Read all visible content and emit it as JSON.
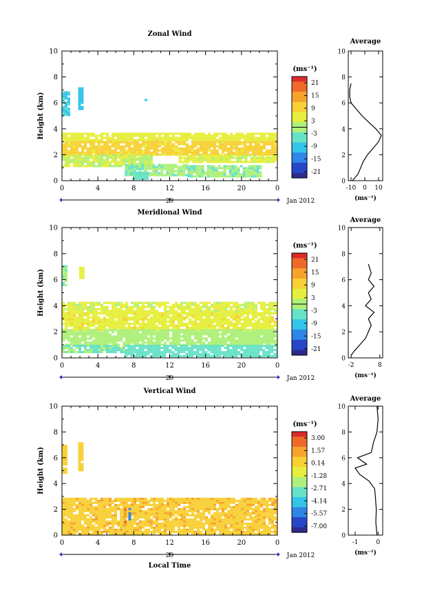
{
  "chart_data": [
    {
      "type": "heatmap",
      "title": "Zonal Wind",
      "ylabel": "Height (km)",
      "xticks": [
        "0",
        "4",
        "8",
        "12",
        "16",
        "20",
        "0"
      ],
      "yticks": [
        "0",
        "2",
        "4",
        "6",
        "8",
        "10"
      ],
      "xlim": [
        0,
        24
      ],
      "ylim": [
        0,
        10
      ],
      "date_tick": "29",
      "date_label": "Jan 2012",
      "colorbar": {
        "unit": "(ms⁻¹)",
        "ticks": [
          "21",
          "15",
          "9",
          "3",
          "-3",
          "-9",
          "-15",
          "-21"
        ],
        "range": [
          -24,
          24
        ],
        "zero_line_at": 0
      },
      "profile": {
        "title": "Average",
        "xticks": [
          "-10",
          "0",
          "10"
        ],
        "xlabel": "(ms⁻¹)",
        "xlim": [
          -12,
          13
        ],
        "points": [
          [
            -9,
            0
          ],
          [
            -5,
            0.5
          ],
          [
            -3,
            1.0
          ],
          [
            -1,
            1.5
          ],
          [
            2,
            2.0
          ],
          [
            6,
            2.5
          ],
          [
            10,
            3.0
          ],
          [
            12,
            3.5
          ],
          [
            8,
            4.0
          ],
          [
            3,
            4.5
          ],
          [
            -2,
            5.0
          ],
          [
            -6,
            5.5
          ],
          [
            -10,
            6.0
          ],
          [
            -11,
            6.5
          ],
          [
            -11,
            7.0
          ],
          [
            -10,
            7.5
          ]
        ]
      },
      "patches": [
        {
          "x": [
            0.0,
            24.0
          ],
          "y": [
            2.0,
            3.2
          ],
          "v": 8
        },
        {
          "x": [
            0.0,
            24.0
          ],
          "y": [
            3.2,
            3.7
          ],
          "v": 4
        },
        {
          "x": [
            0.0,
            10.0
          ],
          "y": [
            1.2,
            2.0
          ],
          "v": 2
        },
        {
          "x": [
            13.0,
            24.0
          ],
          "y": [
            1.4,
            2.0
          ],
          "v": 3
        },
        {
          "x": [
            7.0,
            14.0
          ],
          "y": [
            0.5,
            1.3
          ],
          "v": -2
        },
        {
          "x": [
            14.0,
            22.0
          ],
          "y": [
            0.3,
            1.2
          ],
          "v": -2
        },
        {
          "x": [
            7.5,
            9.5
          ],
          "y": [
            0.1,
            0.7
          ],
          "v": -4
        },
        {
          "x": [
            0.0,
            0.8
          ],
          "y": [
            5.0,
            6.9
          ],
          "v": -8
        },
        {
          "x": [
            1.8,
            2.3
          ],
          "y": [
            5.6,
            7.2
          ],
          "v": -10
        },
        {
          "x": [
            9.2,
            9.5
          ],
          "y": [
            6.1,
            6.3
          ],
          "v": -8
        }
      ]
    },
    {
      "type": "heatmap",
      "title": "Meridional Wind",
      "ylabel": "Height (km)",
      "xticks": [
        "0",
        "4",
        "8",
        "12",
        "16",
        "20",
        "0"
      ],
      "yticks": [
        "0",
        "2",
        "4",
        "6",
        "8",
        "10"
      ],
      "xlim": [
        0,
        24
      ],
      "ylim": [
        0,
        10
      ],
      "date_tick": "29",
      "date_label": "Jan 2012",
      "colorbar": {
        "unit": "(ms⁻¹)",
        "ticks": [
          "21",
          "15",
          "9",
          "3",
          "-3",
          "-9",
          "-15",
          "-21"
        ],
        "range": [
          -24,
          24
        ],
        "zero_line_at": 0
      },
      "profile": {
        "title": "Average",
        "xticks": [
          "-2",
          "8"
        ],
        "xlabel": "(ms⁻¹)",
        "xlim": [
          -3,
          9
        ],
        "points": [
          [
            -2,
            0.2
          ],
          [
            -1,
            0.5
          ],
          [
            1,
            1.0
          ],
          [
            3,
            1.5
          ],
          [
            4,
            2.0
          ],
          [
            5,
            2.5
          ],
          [
            4,
            3.0
          ],
          [
            6,
            3.5
          ],
          [
            3,
            4.0
          ],
          [
            5,
            4.5
          ],
          [
            4,
            5.0
          ],
          [
            6,
            5.5
          ],
          [
            4,
            6.0
          ],
          [
            5,
            6.5
          ],
          [
            4,
            7.2
          ]
        ]
      },
      "patches": [
        {
          "x": [
            0.0,
            24.0
          ],
          "y": [
            3.5,
            4.3
          ],
          "v": 3
        },
        {
          "x": [
            0.0,
            24.0
          ],
          "y": [
            2.2,
            3.5
          ],
          "v": 6
        },
        {
          "x": [
            0.0,
            24.0
          ],
          "y": [
            1.0,
            2.2
          ],
          "v": -1
        },
        {
          "x": [
            7.0,
            24.0
          ],
          "y": [
            0.1,
            1.0
          ],
          "v": -6
        },
        {
          "x": [
            0.0,
            7.0
          ],
          "y": [
            0.4,
            1.0
          ],
          "v": -3
        },
        {
          "x": [
            0.0,
            0.5
          ],
          "y": [
            5.6,
            7.1
          ],
          "v": -2
        },
        {
          "x": [
            1.9,
            2.3
          ],
          "y": [
            6.2,
            7.0
          ],
          "v": 4
        }
      ]
    },
    {
      "type": "heatmap",
      "title": "Vertical Wind",
      "xlabel": "Local Time",
      "ylabel": "Height (km)",
      "xticks": [
        "0",
        "4",
        "8",
        "12",
        "16",
        "20",
        "0"
      ],
      "yticks": [
        "0",
        "2",
        "4",
        "6",
        "8",
        "10"
      ],
      "xlim": [
        0,
        24
      ],
      "ylim": [
        0,
        10
      ],
      "date_tick": "29",
      "date_label": "Jan 2012",
      "colorbar": {
        "unit": "(ms⁻¹)",
        "ticks": [
          "3.00",
          "1.57",
          "0.14",
          "-1.28",
          "-2.71",
          "-4.14",
          "-5.57",
          "-7.00"
        ],
        "range": [
          -7.7,
          3.7
        ]
      },
      "profile": {
        "title": "Average",
        "xticks": [
          "-1",
          "0"
        ],
        "xlabel": "(ms⁻¹)",
        "xlim": [
          -1.3,
          0.2
        ],
        "points": [
          [
            -0.05,
            0
          ],
          [
            -0.1,
            1.0
          ],
          [
            -0.08,
            2.0
          ],
          [
            -0.12,
            3.0
          ],
          [
            -0.15,
            3.6
          ],
          [
            -0.4,
            4.2
          ],
          [
            -0.8,
            4.7
          ],
          [
            -1.0,
            5.2
          ],
          [
            -0.5,
            5.5
          ],
          [
            -0.9,
            6.0
          ],
          [
            -0.3,
            6.4
          ],
          [
            -0.2,
            7.2
          ],
          [
            -0.05,
            8.0
          ],
          [
            0.0,
            9.0
          ],
          [
            -0.05,
            10.0
          ]
        ]
      },
      "patches": [
        {
          "x": [
            0.0,
            24.0
          ],
          "y": [
            0.0,
            2.9
          ],
          "v": 0.6
        },
        {
          "x": [
            0.0,
            0.6
          ],
          "y": [
            4.8,
            7.0
          ],
          "v": 0.3
        },
        {
          "x": [
            1.8,
            2.4
          ],
          "y": [
            5.0,
            7.2
          ],
          "v": 0.3
        },
        {
          "x": [
            6.9,
            7.0
          ],
          "y": [
            0.8,
            2.2
          ],
          "v": 1.8
        },
        {
          "x": [
            7.4,
            7.6
          ],
          "y": [
            1.1,
            2.1
          ],
          "v": -5.5
        }
      ]
    }
  ]
}
